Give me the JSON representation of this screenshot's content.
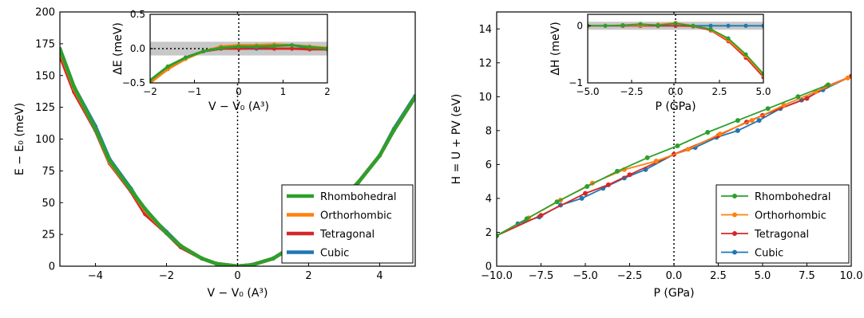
{
  "colors": {
    "rhombohedral": "#2ca02c",
    "orthorhombic": "#ff7f0e",
    "tetragonal": "#d62728",
    "cubic": "#1f77b4",
    "band": "#c8c8c8"
  },
  "chart_data": [
    {
      "type": "line",
      "panel": "left-main",
      "xlabel": "V − V₀ (A³)",
      "ylabel": "E − E₀ (meV)",
      "xlim": [
        -5,
        5
      ],
      "ylim": [
        0,
        200
      ],
      "xticks": [
        "−4",
        "−2",
        "0",
        "2",
        "4"
      ],
      "yticks": [
        "0",
        "25",
        "50",
        "75",
        "100",
        "125",
        "150",
        "175",
        "200"
      ],
      "legend": "bottom-right",
      "vertical_line_at_x": 0,
      "series": [
        {
          "name": "Rhombohedral",
          "x": [
            -5,
            -4.6,
            -4,
            -3.6,
            -3,
            -2.6,
            -2,
            -1.6,
            -1,
            -0.6,
            0,
            0.4,
            1,
            1.4,
            2,
            2.4,
            3,
            3.4,
            4,
            4.4,
            5
          ],
          "y": [
            171,
            141,
            108,
            83,
            60,
            45,
            26,
            16,
            6,
            2,
            0,
            1,
            6,
            13,
            27,
            38,
            55,
            66,
            87,
            107,
            133
          ]
        },
        {
          "name": "Orthorhombic",
          "x": [
            -5,
            -4.6,
            -4,
            -3.6,
            -3,
            -2.6,
            -2,
            -1.6,
            -1,
            -0.6,
            0,
            0.4,
            1,
            1.4,
            2,
            2.4,
            3,
            3.4,
            4,
            4.4,
            5
          ],
          "y": [
            170,
            140,
            108,
            82,
            60,
            44,
            26,
            16,
            6,
            2,
            0,
            1,
            6,
            13,
            27,
            38,
            55,
            66,
            87,
            107,
            133
          ]
        },
        {
          "name": "Tetragonal",
          "x": [
            -5,
            -4.6,
            -4,
            -3.6,
            -3,
            -2.6,
            -2,
            -1.6,
            -1,
            -0.6,
            0,
            0.4,
            1,
            1.4,
            2,
            2.4,
            3,
            3.4,
            4,
            4.4,
            5
          ],
          "y": [
            166,
            137,
            107,
            81,
            59,
            41,
            26,
            15,
            6,
            2,
            0,
            1,
            6,
            13,
            27,
            38,
            55,
            66,
            87,
            107,
            133
          ]
        },
        {
          "name": "Cubic",
          "x": [
            -5,
            -4.6,
            -4,
            -3.6,
            -3,
            -2.6,
            -2,
            -1.6,
            -1,
            -0.6,
            0,
            0.4,
            1,
            1.4,
            2,
            2.4,
            3,
            3.4,
            4,
            4.4,
            5
          ],
          "y": [
            171,
            141,
            110,
            84,
            61,
            43,
            27,
            16,
            6,
            2,
            0,
            1,
            6,
            13,
            27,
            38,
            55,
            66,
            87,
            108,
            134
          ]
        }
      ]
    },
    {
      "type": "line",
      "panel": "left-inset",
      "xlabel": "V − V₀ (A³)",
      "ylabel": "ΔE (meV)",
      "xlim": [
        -2,
        2
      ],
      "ylim": [
        -0.5,
        0.5
      ],
      "xticks": [
        "−2",
        "−1",
        "0",
        "1",
        "2"
      ],
      "yticks": [
        "−0.5",
        "0.0",
        "0.5"
      ],
      "band_y": [
        -0.1,
        0.1
      ],
      "horizontal_line_at_y": 0,
      "vertical_line_at_x": 0,
      "series": [
        {
          "name": "Rhombohedral",
          "x": [
            -2,
            -1.6,
            -1.2,
            -0.8,
            -0.4,
            0,
            0.4,
            0.8,
            1.2,
            1.6,
            2
          ],
          "y": [
            -0.46,
            -0.26,
            -0.13,
            -0.04,
            0.01,
            0.03,
            0.03,
            0.04,
            0.05,
            0.02,
            0.0
          ]
        },
        {
          "name": "Orthorhombic",
          "x": [
            -2,
            -1.6,
            -1.2,
            -0.8,
            -0.4,
            0,
            0.4,
            0.8,
            1.2,
            1.6,
            2
          ],
          "y": [
            -0.5,
            -0.3,
            -0.15,
            -0.04,
            0.03,
            0.05,
            0.05,
            0.06,
            0.05,
            0.03,
            0.01
          ]
        },
        {
          "name": "Tetragonal",
          "x": [
            -2,
            -1.6,
            -1.2,
            -0.8,
            -0.4,
            0,
            0.4,
            0.8,
            1.2,
            1.6,
            2
          ],
          "y": [
            -0.5,
            -0.28,
            -0.13,
            -0.04,
            0.0,
            0.0,
            0.01,
            0.0,
            0.0,
            -0.01,
            -0.01
          ]
        },
        {
          "name": "Cubic",
          "x": [
            -2,
            -1.6,
            -1.2,
            -0.8,
            -0.4,
            0,
            0.4,
            0.8,
            1.2,
            1.6,
            2
          ],
          "y": [
            -0.48,
            -0.27,
            -0.13,
            -0.04,
            0.0,
            0.0,
            0.0,
            0.0,
            0.0,
            0.0,
            0.0
          ]
        }
      ]
    },
    {
      "type": "line",
      "panel": "right-main",
      "xlabel": "P (GPa)",
      "ylabel": "H = U + PV (eV)",
      "xlim": [
        -10,
        10
      ],
      "ylim": [
        0,
        15
      ],
      "xticks": [
        "−10.0",
        "−7.5",
        "−5.0",
        "−2.5",
        "0.0",
        "2.5",
        "5.0",
        "7.5",
        "10.0"
      ],
      "yticks": [
        "0",
        "2",
        "4",
        "6",
        "8",
        "10",
        "12",
        "14"
      ],
      "legend": "bottom-right",
      "vertical_line_at_x": 0,
      "series": [
        {
          "name": "Rhombohedral",
          "x": [
            -10,
            -8.3,
            -6.6,
            -4.9,
            -3.2,
            -1.5,
            0.2,
            1.9,
            3.6,
            5.3,
            7.0,
            8.7
          ],
          "y": [
            1.8,
            2.8,
            3.8,
            4.7,
            5.6,
            6.4,
            7.1,
            7.9,
            8.6,
            9.3,
            10.0,
            10.7
          ]
        },
        {
          "name": "Orthorhombic",
          "x": [
            -10,
            -8.2,
            -6.4,
            -4.6,
            -2.8,
            -1.0,
            0.8,
            2.6,
            4.4,
            6.2,
            8.0,
            9.8
          ],
          "y": [
            1.8,
            2.85,
            3.9,
            4.9,
            5.7,
            6.2,
            6.9,
            7.8,
            8.6,
            9.5,
            10.3,
            11.1
          ]
        },
        {
          "name": "Tetragonal",
          "x": [
            -10,
            -7.5,
            -5.0,
            -3.7,
            -2.5,
            0.0,
            2.5,
            4.1,
            5.0,
            7.5,
            8.6,
            10.0
          ],
          "y": [
            1.8,
            3.0,
            4.3,
            4.8,
            5.4,
            6.6,
            7.7,
            8.5,
            8.9,
            9.9,
            10.6,
            11.2
          ]
        },
        {
          "name": "Cubic",
          "x": [
            -10,
            -8.8,
            -7.6,
            -6.4,
            -5.2,
            -4.0,
            -2.8,
            -1.6,
            0.0,
            1.2,
            2.4,
            3.6,
            4.8,
            6.0,
            7.2,
            8.4,
            10.0
          ],
          "y": [
            1.8,
            2.5,
            2.9,
            3.6,
            4.0,
            4.6,
            5.2,
            5.7,
            6.6,
            7.0,
            7.6,
            8.0,
            8.6,
            9.3,
            9.8,
            10.4,
            11.2
          ]
        }
      ]
    },
    {
      "type": "line",
      "panel": "right-inset",
      "xlabel": "P (GPa)",
      "ylabel": "ΔH (meV)",
      "xlim": [
        -5,
        5
      ],
      "ylim": [
        -1,
        0.2
      ],
      "xticks": [
        "−5.0",
        "−2.5",
        "0.0",
        "2.5",
        "5.0"
      ],
      "yticks": [
        "−1",
        "0"
      ],
      "band_y": [
        -0.07,
        0.07
      ],
      "horizontal_line_at_y": 0,
      "vertical_line_at_x": 0,
      "series": [
        {
          "name": "Rhombohedral",
          "x": [
            -5,
            -4,
            -3,
            -2,
            -1,
            0,
            1,
            2,
            3,
            4,
            5
          ],
          "y": [
            0.0,
            0.0,
            0.01,
            0.03,
            0.01,
            0.04,
            0.0,
            -0.06,
            -0.22,
            -0.5,
            -0.84
          ]
        },
        {
          "name": "Orthorhombic",
          "x": [
            -5,
            -4,
            -3,
            -2,
            -1,
            0,
            1,
            2,
            3,
            4,
            5
          ],
          "y": [
            0.0,
            0.0,
            0.01,
            0.01,
            0.02,
            0.05,
            0.0,
            -0.07,
            -0.25,
            -0.53,
            -0.87
          ]
        },
        {
          "name": "Tetragonal",
          "x": [
            -5,
            -4,
            -3,
            -2,
            -1,
            0,
            1,
            2,
            3,
            4,
            5
          ],
          "y": [
            0.0,
            0.0,
            0.0,
            0.0,
            0.0,
            0.0,
            -0.01,
            -0.08,
            -0.27,
            -0.56,
            -0.9
          ]
        },
        {
          "name": "Cubic",
          "x": [
            -5,
            -4,
            -3,
            -2,
            -1,
            0,
            1,
            2,
            3,
            4,
            5
          ],
          "y": [
            0.0,
            0.0,
            0.0,
            0.0,
            0.0,
            0.0,
            0.0,
            0.0,
            0.0,
            0.0,
            0.0
          ]
        }
      ]
    }
  ]
}
